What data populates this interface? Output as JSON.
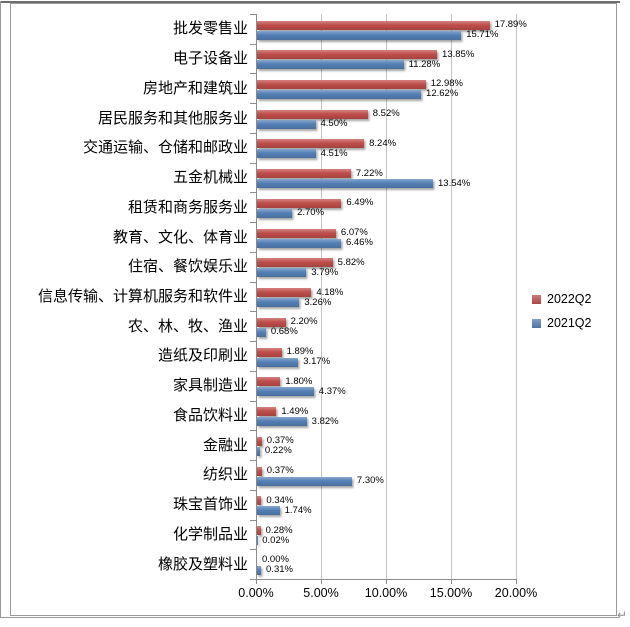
{
  "page": {
    "paragraph_mark": "↵"
  },
  "chart_data": {
    "type": "bar",
    "orientation": "horizontal",
    "title": "",
    "xlabel": "",
    "ylabel": "",
    "grid": true,
    "legend_position": "right-middle",
    "xlim": [
      0,
      20
    ],
    "x_ticks": [
      "0.00%",
      "5.00%",
      "10.00%",
      "15.00%",
      "20.00%"
    ],
    "categories": [
      "批发零售业",
      "电子设备业",
      "房地产和建筑业",
      "居民服务和其他服务业",
      "交通运输、仓储和邮政业",
      "五金机械业",
      "租赁和商务服务业",
      "教育、文化、体育业",
      "住宿、餐饮娱乐业",
      "信息传输、计算机服务和软件业",
      "农、林、牧、渔业",
      "造纸及印刷业",
      "家具制造业",
      "食品饮料业",
      "金融业",
      "纺织业",
      "珠宝首饰业",
      "化学制品业",
      "橡胶及塑料业"
    ],
    "series": [
      {
        "name": "2022Q2",
        "color": "#BF4E4A",
        "values": [
          17.89,
          13.85,
          12.98,
          8.52,
          8.24,
          7.22,
          6.49,
          6.07,
          5.82,
          4.18,
          2.2,
          1.89,
          1.8,
          1.49,
          0.37,
          0.37,
          0.34,
          0.28,
          0.0
        ]
      },
      {
        "name": "2021Q2",
        "color": "#5480B6",
        "values": [
          15.71,
          11.28,
          12.62,
          4.5,
          4.51,
          13.54,
          2.7,
          6.46,
          3.79,
          3.26,
          0.68,
          3.17,
          4.37,
          3.82,
          0.22,
          7.3,
          1.74,
          0.02,
          0.31
        ]
      }
    ],
    "value_label_format": "0.00%"
  }
}
